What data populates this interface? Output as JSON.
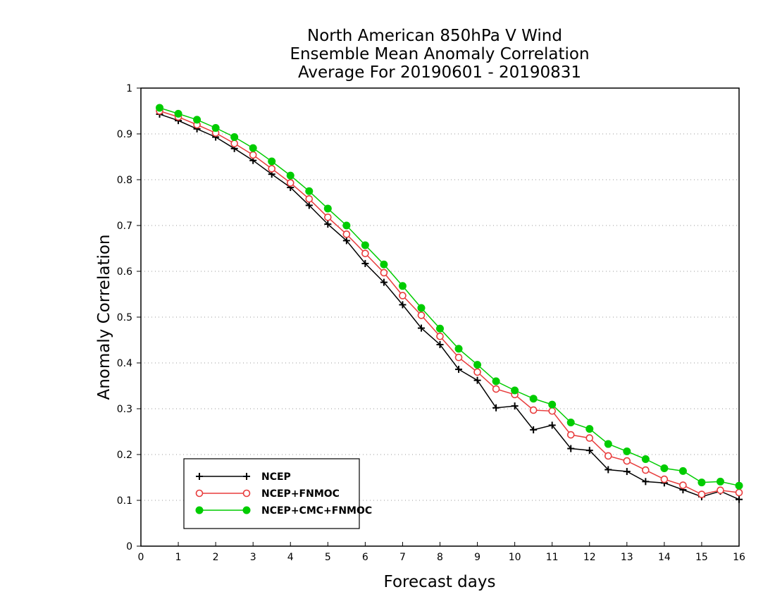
{
  "chart_data": {
    "type": "line",
    "title": [
      "North American 850hPa V Wind",
      "Ensemble Mean Anomaly Correlation",
      "Average For 20190601 - 20190831"
    ],
    "xlabel": "Forecast days",
    "ylabel": "Anomaly Correlation",
    "xlim": [
      0,
      16
    ],
    "ylim": [
      0,
      1
    ],
    "xticks": [
      "0",
      "1",
      "2",
      "3",
      "4",
      "5",
      "6",
      "7",
      "8",
      "9",
      "10",
      "11",
      "12",
      "13",
      "14",
      "15",
      "16"
    ],
    "yticks": [
      "0",
      "0.1",
      "0.2",
      "0.3",
      "0.4",
      "0.5",
      "0.6",
      "0.7",
      "0.8",
      "0.9",
      "1"
    ],
    "grid": true,
    "legend_position": "bottom-left",
    "x": [
      0.5,
      1.0,
      1.5,
      2.0,
      2.5,
      3.0,
      3.5,
      4.0,
      4.5,
      5.0,
      5.5,
      6.0,
      6.5,
      7.0,
      7.5,
      8.0,
      8.5,
      9.0,
      9.5,
      10.0,
      10.5,
      11.0,
      11.5,
      12.0,
      12.5,
      13.0,
      13.5,
      14.0,
      14.5,
      15.0,
      15.5,
      16.0
    ],
    "series": [
      {
        "name": "NCEP",
        "color": "#000000",
        "marker": "plus",
        "values": [
          0.943,
          0.929,
          0.911,
          0.893,
          0.868,
          0.842,
          0.812,
          0.783,
          0.744,
          0.703,
          0.667,
          0.617,
          0.576,
          0.527,
          0.476,
          0.44,
          0.386,
          0.362,
          0.302,
          0.306,
          0.254,
          0.264,
          0.213,
          0.209,
          0.167,
          0.163,
          0.141,
          0.138,
          0.123,
          0.108,
          0.12,
          0.102
        ]
      },
      {
        "name": "NCEP+FNMOC",
        "color": "#e83c3c",
        "marker": "open-circle",
        "values": [
          0.95,
          0.937,
          0.92,
          0.902,
          0.879,
          0.854,
          0.824,
          0.793,
          0.758,
          0.718,
          0.681,
          0.639,
          0.597,
          0.547,
          0.504,
          0.458,
          0.412,
          0.38,
          0.343,
          0.331,
          0.297,
          0.295,
          0.243,
          0.236,
          0.197,
          0.186,
          0.166,
          0.146,
          0.133,
          0.113,
          0.122,
          0.117
        ]
      },
      {
        "name": "NCEP+CMC+FNMOC",
        "color": "#00cc00",
        "marker": "filled-circle",
        "values": [
          0.957,
          0.944,
          0.931,
          0.913,
          0.893,
          0.869,
          0.84,
          0.809,
          0.775,
          0.737,
          0.7,
          0.657,
          0.615,
          0.568,
          0.52,
          0.475,
          0.431,
          0.396,
          0.36,
          0.34,
          0.322,
          0.309,
          0.27,
          0.256,
          0.223,
          0.207,
          0.19,
          0.17,
          0.164,
          0.139,
          0.141,
          0.132
        ]
      }
    ]
  }
}
